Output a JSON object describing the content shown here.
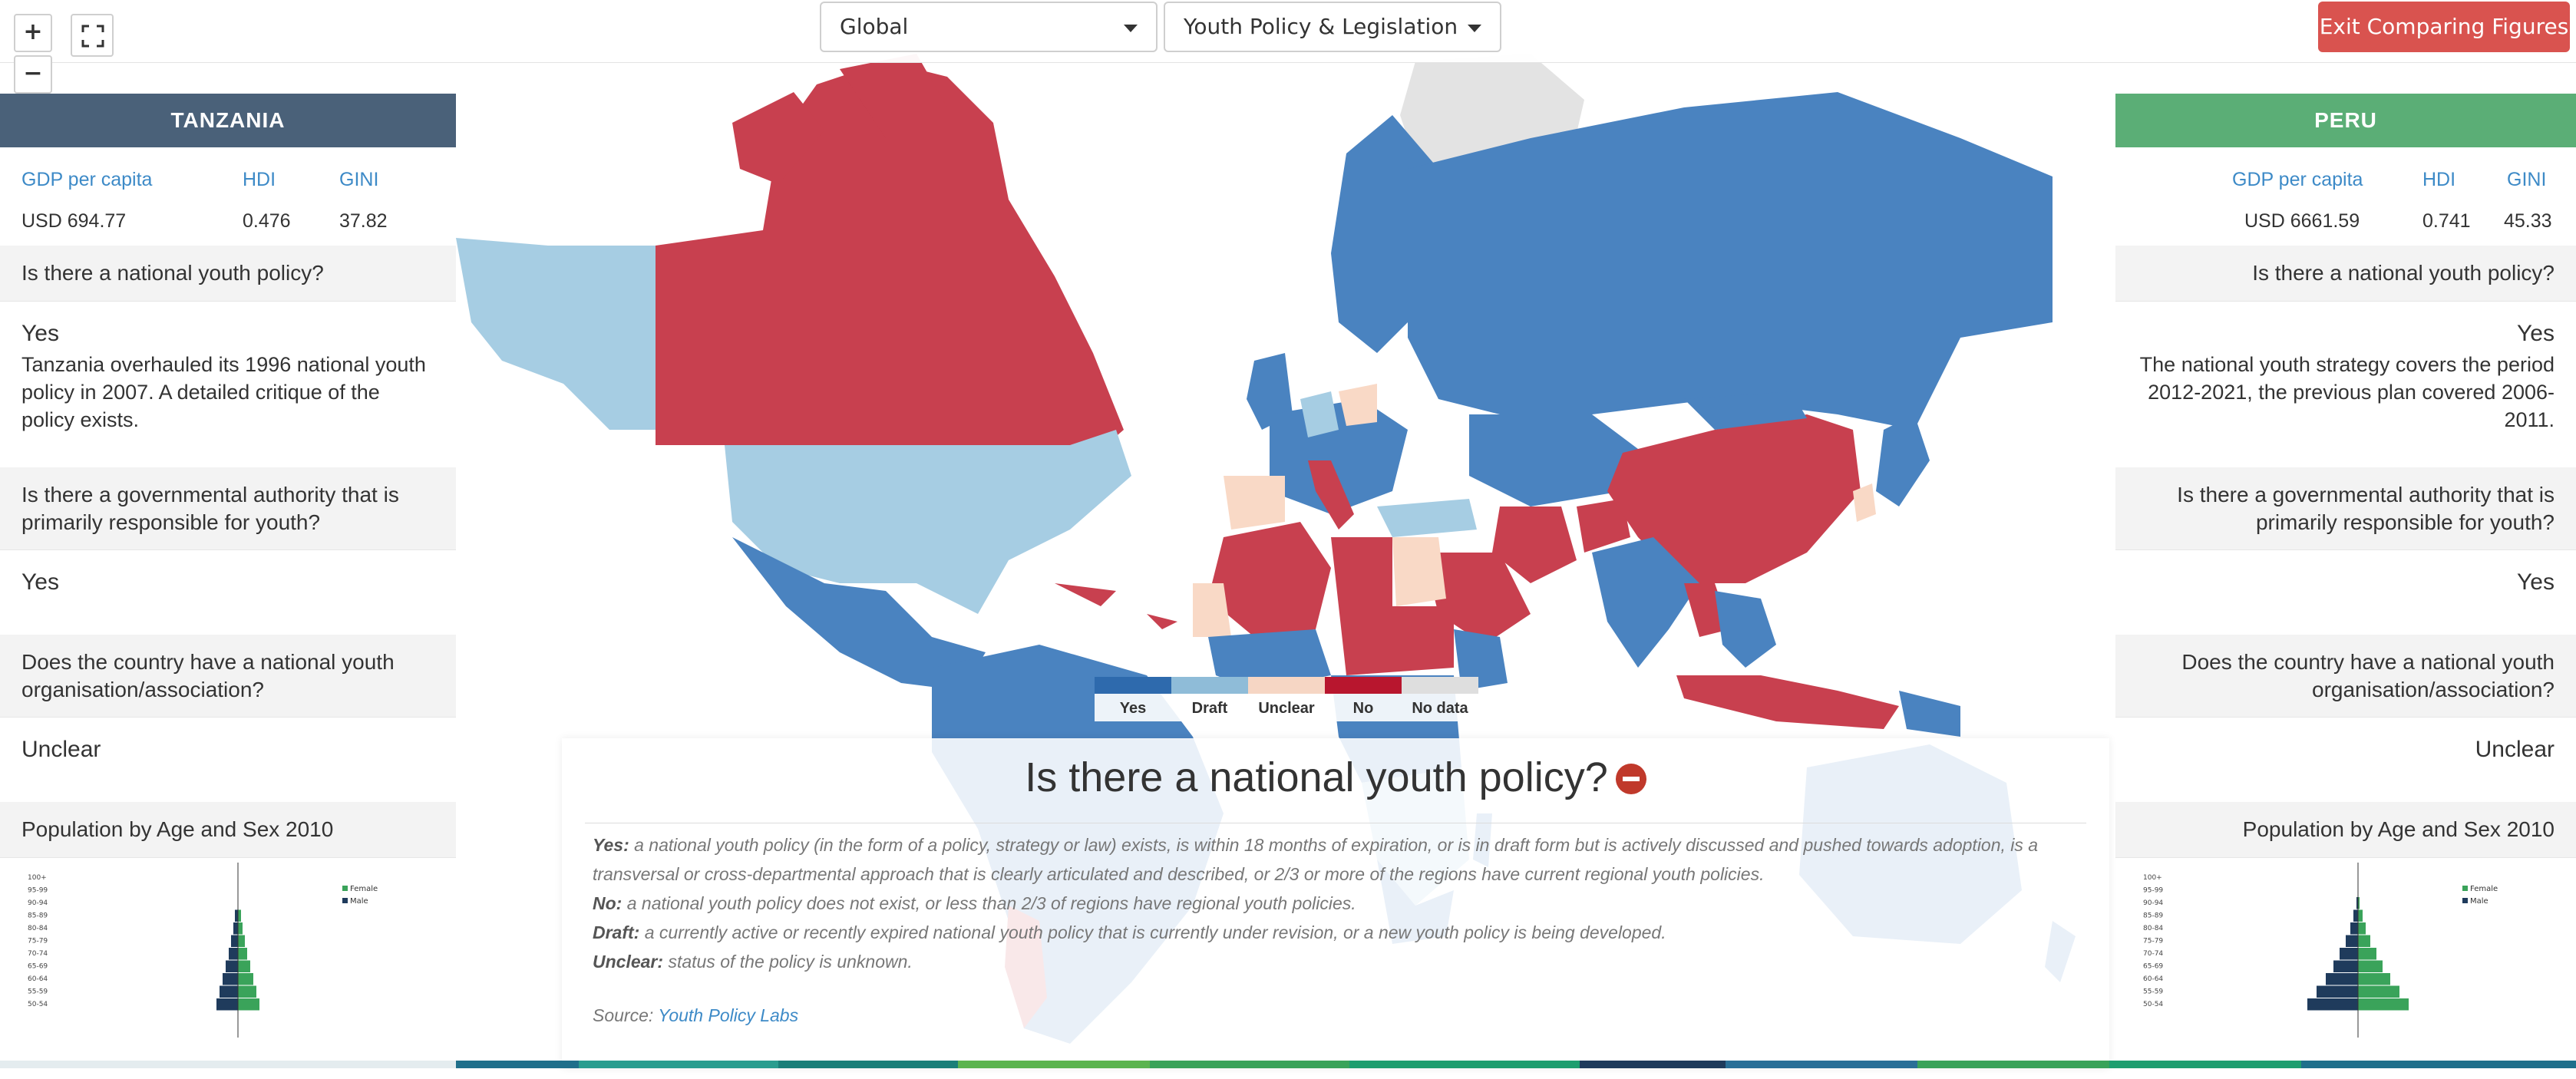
{
  "topbar": {
    "zoom_in": "+",
    "zoom_out": "−",
    "region_select": "Global",
    "topic_select": "Youth Policy & Legislation",
    "exit_button": "Exit Comparing Figures"
  },
  "left_panel": {
    "country": "TANZANIA",
    "header_color": "#4a6179",
    "stats": {
      "gdp_label": "GDP per capita",
      "hdi_label": "HDI",
      "gini_label": "GINI",
      "gdp_value": "USD 694.77",
      "hdi_value": "0.476",
      "gini_value": "37.82"
    },
    "q1": "Is there a national youth policy?",
    "a1": "Yes",
    "a1_note": "Tanzania overhauled its 1996 national youth policy in 2007. A detailed critique of the policy exists.",
    "q2": "Is there a governmental authority that is primarily responsible for youth?",
    "a2": "Yes",
    "q3": "Does the country have a national youth organisation/association?",
    "a3": "Unclear",
    "q4": "Population by Age and Sex 2010"
  },
  "right_panel": {
    "country": "PERU",
    "header_color": "#5bae76",
    "stats": {
      "gdp_label": "GDP per capita",
      "hdi_label": "HDI",
      "gini_label": "GINI",
      "gdp_value": "USD 6661.59",
      "hdi_value": "0.741",
      "gini_value": "45.33"
    },
    "q1": "Is there a national youth policy?",
    "a1": "Yes",
    "a1_note": "The national youth strategy covers the period 2012-2021, the previous plan covered 2006-2011.",
    "q2": "Is there a governmental authority that is primarily responsible for youth?",
    "a2": "Yes",
    "q3": "Does the country have a national youth organisation/association?",
    "a3": "Unclear",
    "q4": "Population by Age and Sex 2010"
  },
  "pyramid": {
    "age_groups": [
      "100+",
      "95-99",
      "90-94",
      "85-89",
      "80-84",
      "75-79",
      "70-74",
      "65-69",
      "60-64",
      "55-59",
      "50-54"
    ],
    "legend_female": "Female",
    "legend_male": "Male",
    "male_color": "#1f3b5c",
    "female_color": "#3aa35a"
  },
  "legend": {
    "items": [
      {
        "label": "Yes",
        "color": "#2e6aad"
      },
      {
        "label": "Draft",
        "color": "#8fbcd8"
      },
      {
        "label": "Unclear",
        "color": "#f6d6c4"
      },
      {
        "label": "No",
        "color": "#b8162e"
      },
      {
        "label": "No data",
        "color": "#dedede"
      }
    ]
  },
  "info": {
    "title": "Is there a national youth policy?",
    "yes_label": "Yes:",
    "yes_text": "a national youth policy (in the form of a policy, strategy or law) exists, is within 18 months of expiration, or is in draft form but is actively discussed and pushed towards adoption, is a transversal or cross-departmental approach that is clearly articulated and described, or 2/3 or more of the regions have current regional youth policies.",
    "no_label": "No:",
    "no_text": "a national youth policy does not exist, or less than 2/3 of regions have regional youth policies.",
    "draft_label": "Draft:",
    "draft_text": "a currently active or recently expired national youth policy that is currently under revision, or a new youth policy is being developed.",
    "unclear_label": "Unclear:",
    "unclear_text": "status of the policy is unknown.",
    "source_label": "Source:",
    "source_link": "Youth Policy Labs"
  },
  "map_colors": {
    "yes": "#4a83c0",
    "draft": "#a6cde3",
    "unclear": "#f9d9c6",
    "no": "#c8404f",
    "nodata": "#e3e3e3"
  }
}
